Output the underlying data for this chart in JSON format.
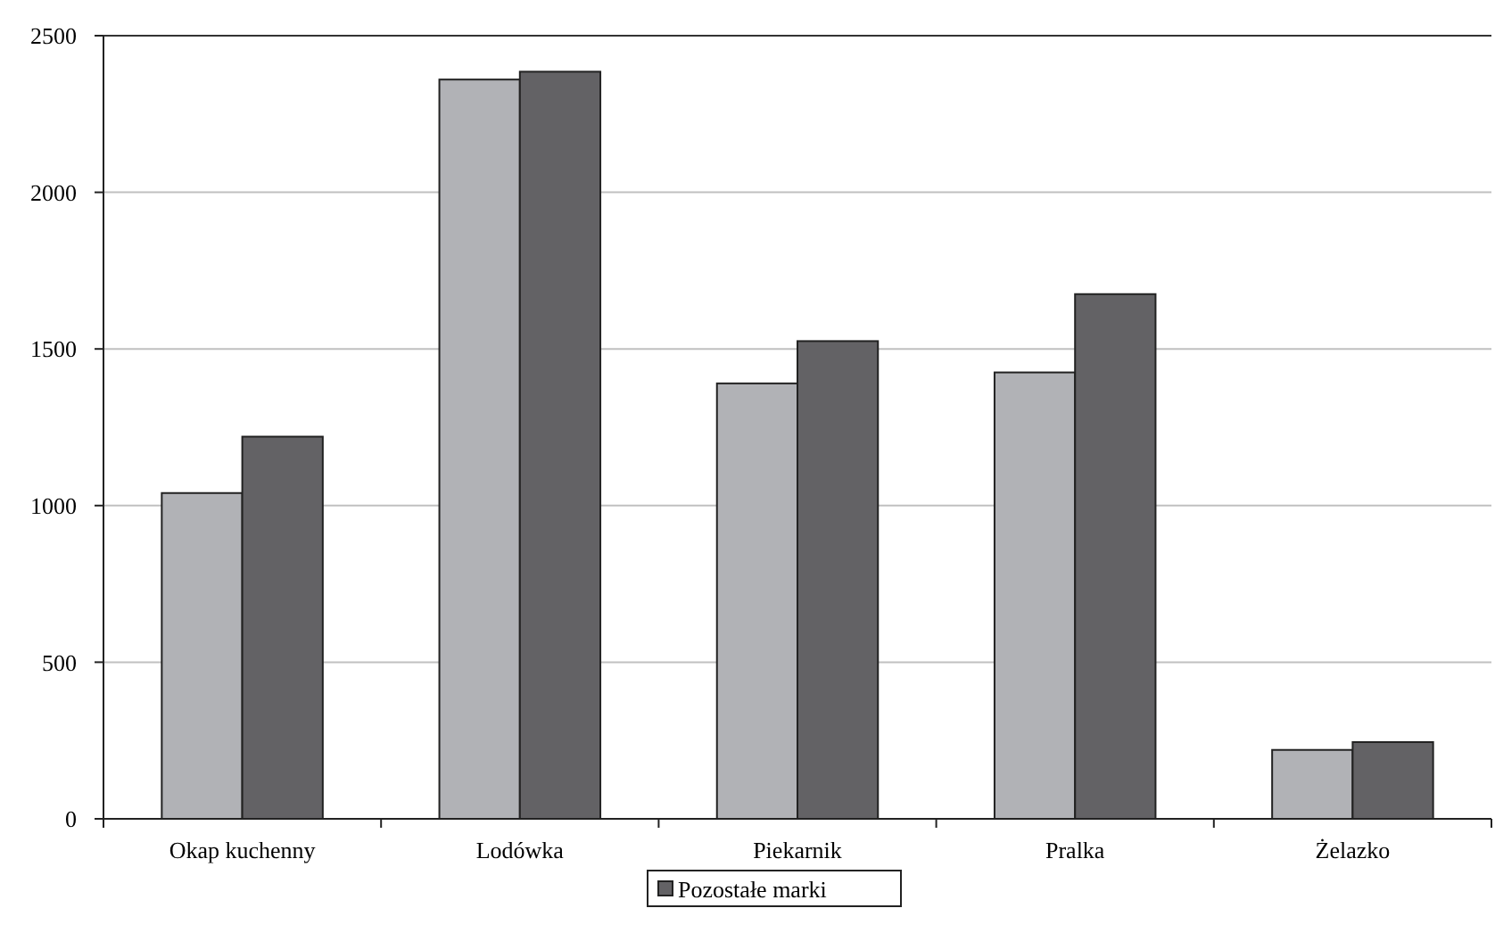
{
  "chart_data": {
    "type": "bar",
    "categories": [
      "Okap kuchenny",
      "Lodówka",
      "Piekarnik",
      "Pralka",
      "Żelazko"
    ],
    "series": [
      {
        "color": "#b1b2b6",
        "values": [
          1040,
          2360,
          1390,
          1425,
          220
        ]
      },
      {
        "name": "Pozostałe marki",
        "color": "#636265",
        "values": [
          1220,
          2385,
          1525,
          1675,
          245
        ]
      }
    ],
    "ylim": [
      0,
      2500
    ],
    "yticks": [
      0,
      500,
      1000,
      1500,
      2000,
      2500
    ],
    "grid": "y",
    "legend": "bottom"
  }
}
